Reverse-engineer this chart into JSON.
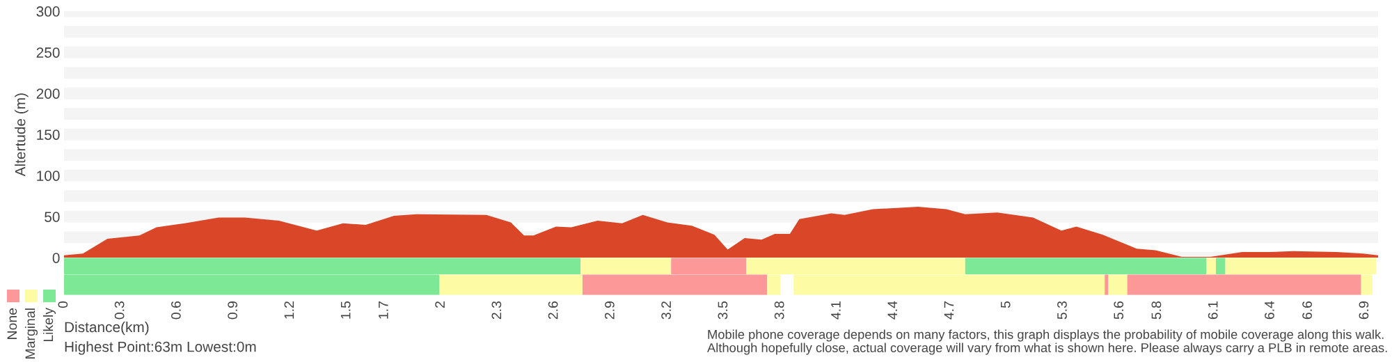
{
  "chart_data": [
    {
      "type": "area",
      "ylabel": "Altertude (m)",
      "color": "#d94628",
      "grid": "y",
      "tick_labels": "y",
      "x": [
        0,
        0.1,
        0.23,
        0.4,
        0.49,
        0.64,
        0.82,
        0.96,
        1.14,
        1.34,
        1.48,
        1.6,
        1.75,
        1.87,
        2.24,
        2.37,
        2.44,
        2.49,
        2.61,
        2.69,
        2.83,
        2.96,
        3.07,
        3.2,
        3.33,
        3.45,
        3.52,
        3.61,
        3.7,
        3.77,
        3.85,
        3.9,
        4.07,
        4.14,
        4.29,
        4.53,
        4.68,
        4.78,
        4.95,
        5.14,
        5.29,
        5.37,
        5.51,
        5.69,
        5.79,
        5.93,
        6.08,
        6.25,
        6.4,
        6.52,
        6.75,
        6.89,
        6.97
      ],
      "values": [
        3,
        5,
        23,
        27,
        37,
        42,
        49,
        49,
        45,
        33,
        42,
        40,
        51,
        53,
        52,
        43,
        27,
        27,
        38,
        37,
        45,
        42,
        52,
        43,
        39,
        28,
        10,
        24,
        22,
        29,
        29,
        47,
        54,
        52,
        59,
        62,
        59,
        53,
        55,
        49,
        33,
        38,
        28,
        11,
        9,
        1,
        1,
        7,
        7,
        8,
        7,
        5,
        3
      ],
      "xlim": [
        0,
        6.97
      ],
      "ylim": [
        0,
        300
      ],
      "yticks": [
        0,
        50,
        100,
        150,
        200,
        250,
        300
      ]
    },
    {
      "type": "bar",
      "orientation": "horizontal",
      "categories": [
        null
      ],
      "tick_labels": false,
      "xlim": [
        0,
        6.97
      ],
      "series": [
        {
          "color": "#7de896",
          "base": [
            0
          ],
          "values": [
            2.74
          ]
        },
        {
          "color": "#fdfca4",
          "base": [
            2.74
          ],
          "values": [
            0.48
          ]
        },
        {
          "color": "#fc9897",
          "base": [
            3.22
          ],
          "values": [
            0.4
          ]
        },
        {
          "color": "#fdfca4",
          "base": [
            3.62
          ],
          "values": [
            1.16
          ]
        },
        {
          "color": "#7de896",
          "base": [
            4.78
          ],
          "values": [
            1.28
          ]
        },
        {
          "color": "#fdfca4",
          "base": [
            6.06
          ],
          "values": [
            0.05
          ]
        },
        {
          "color": "#7de896",
          "base": [
            6.11
          ],
          "values": [
            0.05
          ]
        },
        {
          "color": "#fdfca4",
          "base": [
            6.16
          ],
          "values": [
            0.8
          ]
        }
      ]
    },
    {
      "type": "bar",
      "orientation": "horizontal",
      "categories": [
        null
      ],
      "tick_labels": "x",
      "xlabel": "Distance(km)",
      "xlim": [
        0,
        6.97
      ],
      "xticks": [
        0,
        0.3,
        0.6,
        0.9,
        1.2,
        1.5,
        1.7,
        2,
        2.3,
        2.6,
        2.9,
        3.2,
        3.5,
        3.8,
        4.1,
        4.4,
        4.7,
        5,
        5.3,
        5.6,
        5.8,
        6.1,
        6.4,
        6.6,
        6.9
      ],
      "series": [
        {
          "color": "#7de896",
          "base": [
            0
          ],
          "values": [
            1.99
          ]
        },
        {
          "color": "#fdfca4",
          "base": [
            1.99
          ],
          "values": [
            0.76
          ]
        },
        {
          "color": "#fc9897",
          "base": [
            2.75
          ],
          "values": [
            0.98
          ]
        },
        {
          "color": "#fdfca4",
          "base": [
            3.73
          ],
          "values": [
            0.07
          ]
        },
        {
          "color": "#fdfca4",
          "base": [
            3.87
          ],
          "values": [
            1.65
          ]
        },
        {
          "color": "#fc9897",
          "base": [
            5.52
          ],
          "values": [
            0.02
          ]
        },
        {
          "color": "#fdfca4",
          "base": [
            5.54
          ],
          "values": [
            0.1
          ]
        },
        {
          "color": "#fc9897",
          "base": [
            5.64
          ],
          "values": [
            1.24
          ]
        },
        {
          "color": "#fdfca4",
          "base": [
            6.88
          ],
          "values": [
            0.06
          ]
        }
      ],
      "annotations": [
        "None",
        "Marginal",
        "Likely",
        "Highest Point:63m Lowest:0m",
        "Mobile phone coverage depends on many factors, this graph displays the probability of mobile coverage along this walk.\nAlthough hopefully close, actual coverage will vary from what is shown here. Please always carry a PLB in remote areas."
      ]
    }
  ]
}
